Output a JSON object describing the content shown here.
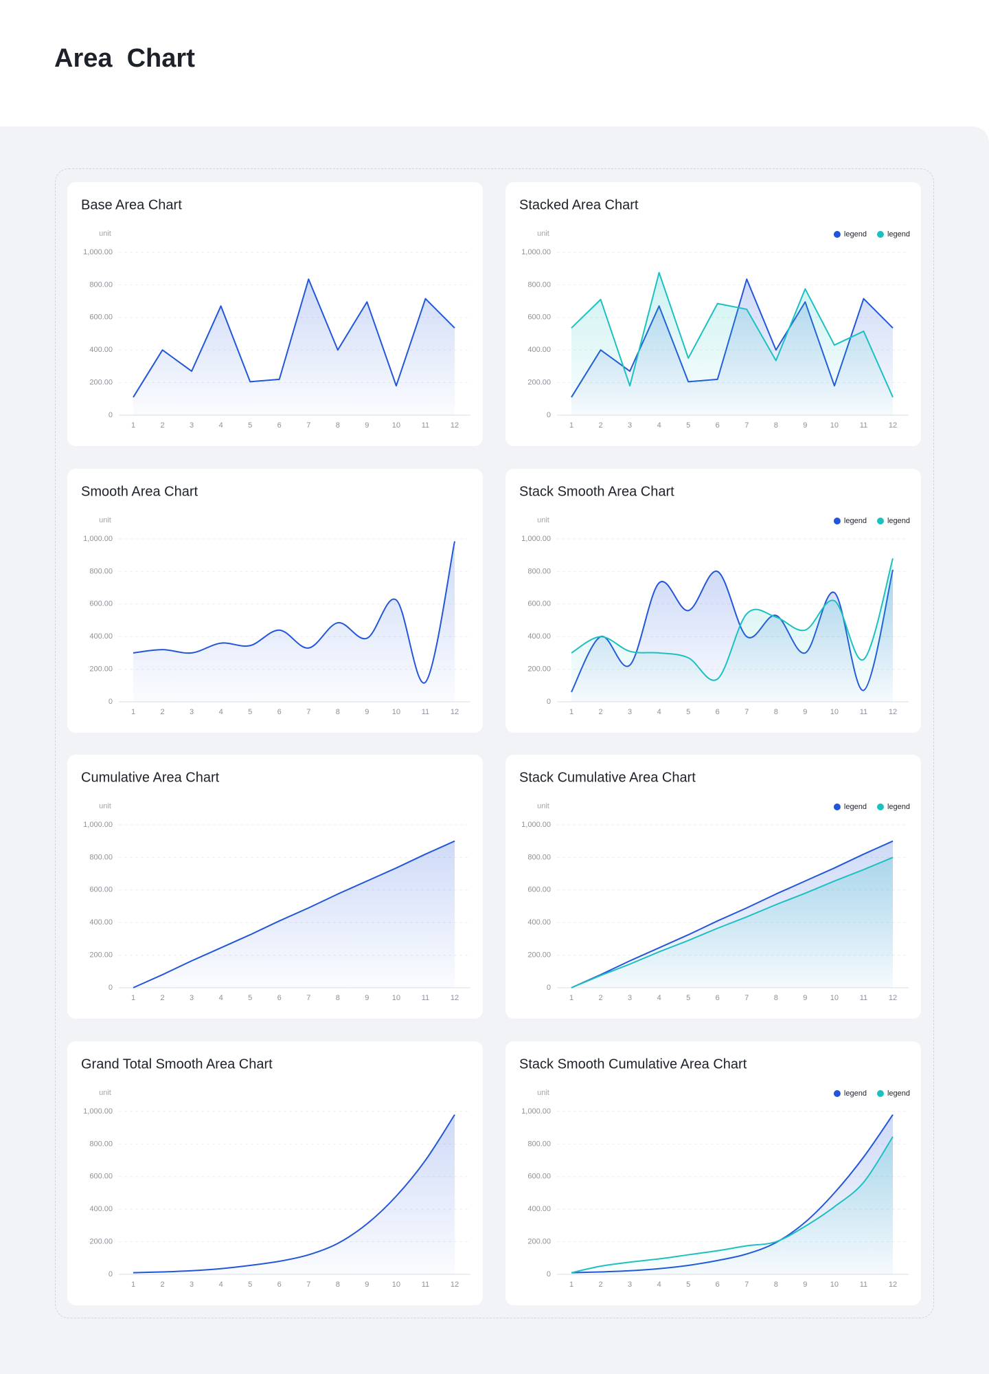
{
  "header": {
    "title": "Area  Chart"
  },
  "chart_data": [
    {
      "type": "area",
      "smooth": false,
      "title": "Base Area Chart",
      "y_axis_label": "unit",
      "categories": [
        "1",
        "2",
        "3",
        "4",
        "5",
        "6",
        "7",
        "8",
        "9",
        "10",
        "11",
        "12"
      ],
      "color": "#2156d9",
      "values": [
        110,
        400,
        270,
        670,
        205,
        220,
        835,
        400,
        695,
        180,
        715,
        535
      ],
      "ylim": [
        0,
        1000
      ],
      "yticks": [
        0,
        {
          "value": 200,
          "label": "200.00"
        },
        {
          "value": 400,
          "label": "400.00"
        },
        {
          "value": 600,
          "label": "600.00"
        },
        {
          "value": 800,
          "label": "800.00"
        },
        {
          "value": 1000,
          "label": "1,000.00"
        }
      ],
      "grid": true
    },
    {
      "type": "area",
      "smooth": false,
      "title": "Stacked Area Chart",
      "y_axis_label": "unit",
      "legend": "top-right",
      "categories": [
        "1",
        "2",
        "3",
        "4",
        "5",
        "6",
        "7",
        "8",
        "9",
        "10",
        "11",
        "12"
      ],
      "series": [
        {
          "name": "legend",
          "color": "#2156d9",
          "values": [
            110,
            400,
            270,
            670,
            205,
            220,
            835,
            400,
            695,
            180,
            715,
            535
          ]
        },
        {
          "name": "legend",
          "color": "#1cc0c0",
          "values": [
            535,
            710,
            180,
            875,
            350,
            685,
            650,
            335,
            775,
            430,
            515,
            110
          ]
        }
      ],
      "ylim": [
        0,
        1000
      ],
      "yticks": [
        0,
        {
          "value": 200,
          "label": "200.00"
        },
        {
          "value": 400,
          "label": "400.00"
        },
        {
          "value": 600,
          "label": "600.00"
        },
        {
          "value": 800,
          "label": "800.00"
        },
        {
          "value": 1000,
          "label": "1,000.00"
        }
      ],
      "grid": true
    },
    {
      "type": "area",
      "smooth": true,
      "title": "Smooth Area Chart",
      "y_axis_label": "unit",
      "categories": [
        "1",
        "2",
        "3",
        "4",
        "5",
        "6",
        "7",
        "8",
        "9",
        "10",
        "11",
        "12"
      ],
      "color": "#2156d9",
      "values": [
        300,
        320,
        300,
        360,
        345,
        440,
        330,
        485,
        390,
        625,
        120,
        985
      ],
      "ylim": [
        0,
        1000
      ],
      "yticks": [
        0,
        {
          "value": 200,
          "label": "200.00"
        },
        {
          "value": 400,
          "label": "400.00"
        },
        {
          "value": 600,
          "label": "600.00"
        },
        {
          "value": 800,
          "label": "800.00"
        },
        {
          "value": 1000,
          "label": "1,000.00"
        }
      ],
      "grid": true
    },
    {
      "type": "area",
      "smooth": true,
      "title": "Stack Smooth Area Chart",
      "y_axis_label": "unit",
      "legend": "top-right",
      "categories": [
        "1",
        "2",
        "3",
        "4",
        "5",
        "6",
        "7",
        "8",
        "9",
        "10",
        "11",
        "12"
      ],
      "series": [
        {
          "name": "legend",
          "color": "#2156d9",
          "values": [
            60,
            400,
            225,
            730,
            560,
            800,
            400,
            530,
            300,
            670,
            70,
            810
          ]
        },
        {
          "name": "legend",
          "color": "#1cc0c0",
          "values": [
            300,
            400,
            310,
            300,
            270,
            140,
            540,
            520,
            440,
            620,
            260,
            880
          ]
        }
      ],
      "ylim": [
        0,
        1000
      ],
      "yticks": [
        0,
        {
          "value": 200,
          "label": "200.00"
        },
        {
          "value": 400,
          "label": "400.00"
        },
        {
          "value": 600,
          "label": "600.00"
        },
        {
          "value": 800,
          "label": "800.00"
        },
        {
          "value": 1000,
          "label": "1,000.00"
        }
      ],
      "grid": true
    },
    {
      "type": "area",
      "smooth": false,
      "title": "Cumulative Area Chart",
      "y_axis_label": "unit",
      "categories": [
        "1",
        "2",
        "3",
        "4",
        "5",
        "6",
        "7",
        "8",
        "9",
        "10",
        "11",
        "12"
      ],
      "color": "#2156d9",
      "values": [
        0,
        80,
        165,
        245,
        325,
        410,
        490,
        575,
        655,
        735,
        820,
        900
      ],
      "ylim": [
        0,
        1000
      ],
      "yticks": [
        0,
        {
          "value": 200,
          "label": "200.00"
        },
        {
          "value": 400,
          "label": "400.00"
        },
        {
          "value": 600,
          "label": "600.00"
        },
        {
          "value": 800,
          "label": "800.00"
        },
        {
          "value": 1000,
          "label": "1,000.00"
        }
      ],
      "grid": true
    },
    {
      "type": "area",
      "smooth": false,
      "title": "Stack Cumulative Area Chart",
      "y_axis_label": "unit",
      "legend": "top-right",
      "categories": [
        "1",
        "2",
        "3",
        "4",
        "5",
        "6",
        "7",
        "8",
        "9",
        "10",
        "11",
        "12"
      ],
      "series": [
        {
          "name": "legend",
          "color": "#2156d9",
          "values": [
            0,
            80,
            165,
            245,
            325,
            410,
            490,
            575,
            655,
            735,
            820,
            900
          ]
        },
        {
          "name": "legend",
          "color": "#1cc0c0",
          "values": [
            0,
            75,
            145,
            220,
            290,
            365,
            435,
            510,
            580,
            655,
            725,
            800
          ]
        }
      ],
      "ylim": [
        0,
        1000
      ],
      "yticks": [
        0,
        {
          "value": 200,
          "label": "200.00"
        },
        {
          "value": 400,
          "label": "400.00"
        },
        {
          "value": 600,
          "label": "600.00"
        },
        {
          "value": 800,
          "label": "800.00"
        },
        {
          "value": 1000,
          "label": "1,000.00"
        }
      ],
      "grid": true
    },
    {
      "type": "area",
      "smooth": true,
      "title": "Grand Total Smooth Area Chart",
      "y_axis_label": "unit",
      "categories": [
        "1",
        "2",
        "3",
        "4",
        "5",
        "6",
        "7",
        "8",
        "9",
        "10",
        "11",
        "12"
      ],
      "color": "#2156d9",
      "values": [
        10,
        15,
        22,
        35,
        55,
        80,
        120,
        190,
        310,
        480,
        700,
        980
      ],
      "ylim": [
        0,
        1000
      ],
      "yticks": [
        0,
        {
          "value": 200,
          "label": "200.00"
        },
        {
          "value": 400,
          "label": "400.00"
        },
        {
          "value": 600,
          "label": "600.00"
        },
        {
          "value": 800,
          "label": "800.00"
        },
        {
          "value": 1000,
          "label": "1,000.00"
        }
      ],
      "grid": true
    },
    {
      "type": "area",
      "smooth": true,
      "title": "Stack Smooth Cumulative Area Chart",
      "y_axis_label": "unit",
      "legend": "top-right",
      "categories": [
        "1",
        "2",
        "3",
        "4",
        "5",
        "6",
        "7",
        "8",
        "9",
        "10",
        "11",
        "12"
      ],
      "series": [
        {
          "name": "legend",
          "color": "#2156d9",
          "values": [
            10,
            15,
            22,
            35,
            55,
            85,
            125,
            195,
            320,
            500,
            720,
            980
          ]
        },
        {
          "name": "legend",
          "color": "#1cc0c0",
          "values": [
            10,
            50,
            75,
            95,
            120,
            145,
            175,
            200,
            295,
            415,
            565,
            845
          ]
        }
      ],
      "ylim": [
        0,
        1000
      ],
      "yticks": [
        0,
        {
          "value": 200,
          "label": "200.00"
        },
        {
          "value": 400,
          "label": "400.00"
        },
        {
          "value": 600,
          "label": "600.00"
        },
        {
          "value": 800,
          "label": "800.00"
        },
        {
          "value": 1000,
          "label": "1,000.00"
        }
      ],
      "grid": true
    }
  ]
}
